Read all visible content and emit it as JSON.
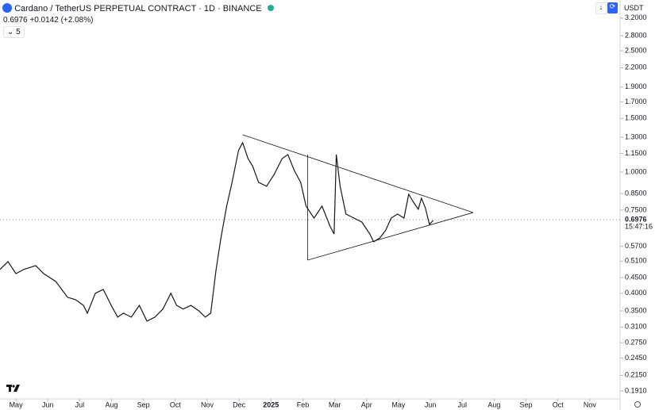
{
  "chart_data": {
    "type": "line",
    "log_scale": true,
    "title": "Cardano / TetherUS PERPETUAL CONTRACT · 1D · BINANCE",
    "subtitle": "0.6976 +0.0142 (+2.08%)",
    "indicator_count": "5",
    "currency": "USDT",
    "timer": "15:47:16",
    "last_price": 0.6976,
    "color": "#131722",
    "xlim": [
      -0.5,
      18.95
    ],
    "ylim": [
      0.18,
      3.67
    ],
    "xticks": [
      {
        "value": 0,
        "label": "May"
      },
      {
        "value": 1,
        "label": "Jun"
      },
      {
        "value": 2,
        "label": "Jul"
      },
      {
        "value": 3,
        "label": "Aug"
      },
      {
        "value": 4,
        "label": "Sep"
      },
      {
        "value": 5,
        "label": "Oct"
      },
      {
        "value": 6,
        "label": "Nov"
      },
      {
        "value": 7,
        "label": "Dec"
      },
      {
        "value": 8,
        "label": "2025"
      },
      {
        "value": 9,
        "label": "Feb"
      },
      {
        "value": 10,
        "label": "Mar"
      },
      {
        "value": 11,
        "label": "Apr"
      },
      {
        "value": 12,
        "label": "May"
      },
      {
        "value": 13,
        "label": "Jun"
      },
      {
        "value": 14,
        "label": "Jul"
      },
      {
        "value": 15,
        "label": "Aug"
      },
      {
        "value": 16,
        "label": "Sep"
      },
      {
        "value": 17,
        "label": "Oct"
      },
      {
        "value": 18,
        "label": "Nov"
      }
    ],
    "yticks": [
      {
        "value": 3.2,
        "label": "3.2000"
      },
      {
        "value": 2.8,
        "label": "2.8000"
      },
      {
        "value": 2.5,
        "label": "2.5000"
      },
      {
        "value": 2.2,
        "label": "2.2000"
      },
      {
        "value": 1.9,
        "label": "1.9000"
      },
      {
        "value": 1.7,
        "label": "1.7000"
      },
      {
        "value": 1.5,
        "label": "1.5000"
      },
      {
        "value": 1.3,
        "label": "1.3000"
      },
      {
        "value": 1.15,
        "label": "1.1500"
      },
      {
        "value": 1.0,
        "label": "1.0000"
      },
      {
        "value": 0.85,
        "label": "0.8500"
      },
      {
        "value": 0.75,
        "label": "0.7500"
      },
      {
        "value": 0.57,
        "label": "0.5700"
      },
      {
        "value": 0.51,
        "label": "0.5100"
      },
      {
        "value": 0.45,
        "label": "0.4500"
      },
      {
        "value": 0.4,
        "label": "0.4000"
      },
      {
        "value": 0.35,
        "label": "0.3500"
      },
      {
        "value": 0.31,
        "label": "0.3100"
      },
      {
        "value": 0.275,
        "label": "0.2750"
      },
      {
        "value": 0.245,
        "label": "0.2450"
      },
      {
        "value": 0.215,
        "label": "0.2150"
      },
      {
        "value": 0.191,
        "label": "0.1910"
      }
    ],
    "x": [
      -0.5,
      -0.25,
      0,
      0.25,
      0.62,
      0.87,
      1.25,
      1.62,
      1.87,
      2.12,
      2.24,
      2.49,
      2.74,
      2.99,
      3.19,
      3.37,
      3.62,
      3.87,
      4.11,
      4.36,
      4.61,
      4.86,
      5.04,
      5.24,
      5.49,
      5.74,
      5.94,
      6.11,
      6.28,
      6.43,
      6.61,
      6.78,
      6.98,
      7.11,
      7.28,
      7.43,
      7.61,
      7.86,
      8.1,
      8.35,
      8.53,
      8.73,
      8.93,
      9.1,
      9.35,
      9.6,
      9.85,
      9.98,
      10.05,
      10.17,
      10.35,
      10.6,
      10.85,
      11.1,
      11.22,
      11.42,
      11.6,
      11.77,
      11.97,
      12.17,
      12.32,
      12.47,
      12.62,
      12.72,
      12.84,
      12.97,
      13.09
    ],
    "values": [
      0.479,
      0.508,
      0.464,
      0.479,
      0.493,
      0.464,
      0.437,
      0.388,
      0.381,
      0.365,
      0.344,
      0.4,
      0.412,
      0.365,
      0.334,
      0.344,
      0.334,
      0.365,
      0.324,
      0.334,
      0.355,
      0.4,
      0.365,
      0.355,
      0.365,
      0.35,
      0.334,
      0.344,
      0.479,
      0.608,
      0.773,
      0.925,
      1.176,
      1.249,
      1.107,
      1.043,
      0.925,
      0.898,
      0.982,
      1.107,
      1.141,
      1.012,
      0.925,
      0.773,
      0.706,
      0.773,
      0.665,
      0.626,
      1.141,
      0.898,
      0.728,
      0.706,
      0.685,
      0.626,
      0.59,
      0.608,
      0.645,
      0.706,
      0.728,
      0.706,
      0.845,
      0.796,
      0.755,
      0.82,
      0.763,
      0.673,
      0.694
    ],
    "trendlines": [
      [
        [
          7.11,
          1.326
        ],
        [
          14.34,
          0.736
        ]
      ],
      [
        [
          9.15,
          0.514
        ],
        [
          14.34,
          0.736
        ]
      ],
      [
        [
          9.15,
          0.514
        ],
        [
          9.15,
          1.141
        ]
      ]
    ]
  }
}
